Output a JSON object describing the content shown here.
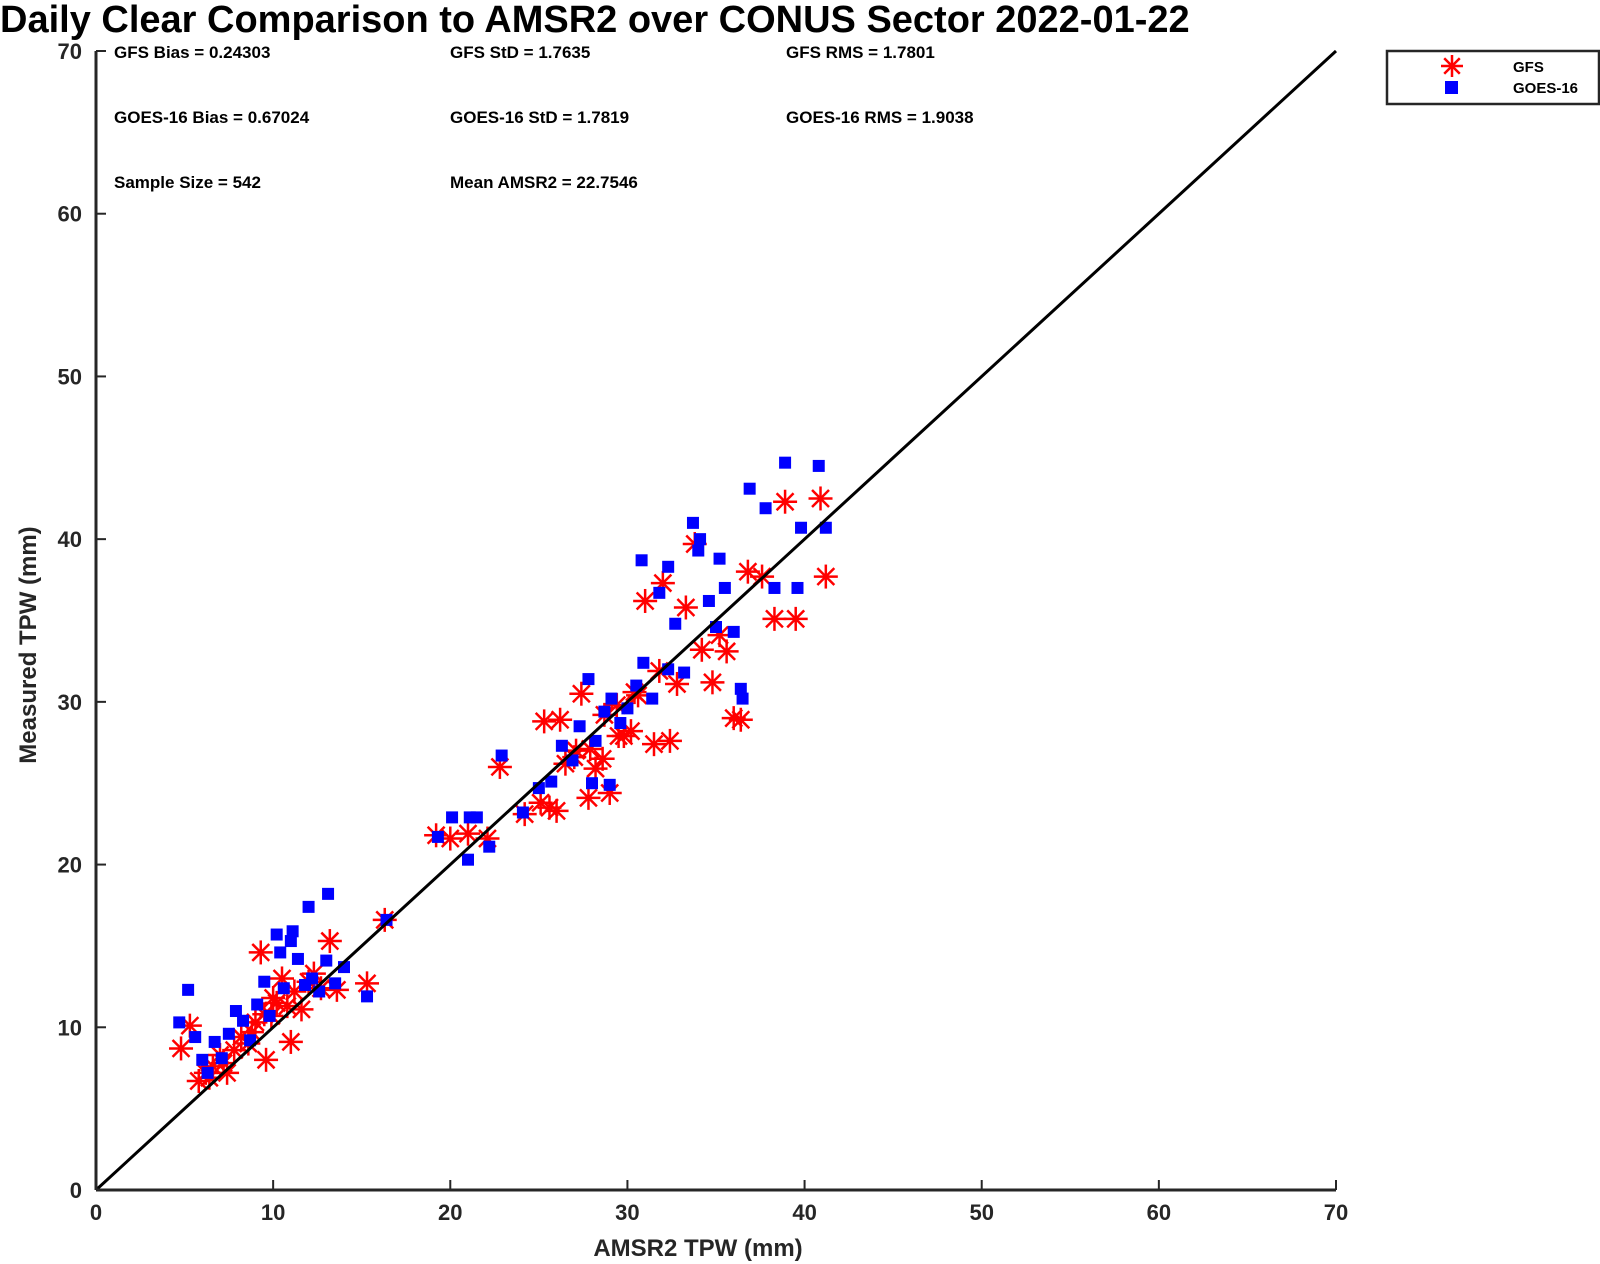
{
  "chart_data": {
    "type": "scatter",
    "title": "Daily Clear Comparison to AMSR2 over CONUS Sector 2022-01-22",
    "xlabel": "AMSR2 TPW (mm)",
    "ylabel": "Measured TPW (mm)",
    "xlim": [
      0,
      70
    ],
    "ylim": [
      0,
      70
    ],
    "xticks": [
      "0",
      "10",
      "20",
      "30",
      "40",
      "50",
      "60",
      "70"
    ],
    "yticks": [
      "0",
      "10",
      "20",
      "30",
      "40",
      "50",
      "60",
      "70"
    ],
    "grid": false,
    "legend_position": "outside-top-right",
    "reference_line": {
      "x": [
        0,
        70
      ],
      "y": [
        0,
        70
      ]
    },
    "statistics": [
      "GFS Bias = 0.24303",
      "GFS StD = 1.7635",
      "GFS RMS = 1.7801",
      "GOES-16 Bias = 0.67024",
      "GOES-16 StD = 1.7819",
      "GOES-16 RMS = 1.9038",
      "Sample Size = 542",
      "Mean AMSR2 = 22.7546"
    ],
    "series": [
      {
        "name": "GFS",
        "color": "#ff0000",
        "marker": "asterisk",
        "x": [
          4.8,
          5.3,
          5.8,
          6.2,
          6.6,
          7.0,
          7.4,
          7.8,
          8.2,
          8.6,
          9.0,
          9.3,
          9.6,
          9.9,
          10.2,
          10.5,
          10.8,
          11.2,
          11.6,
          12.0,
          12.3,
          12.7,
          13.2,
          13.6,
          15.3,
          16.3,
          8.8,
          9.5,
          10.0,
          11.0,
          6.4,
          7.2,
          19.2,
          20.0,
          21.0,
          22.1,
          22.8,
          24.2,
          25.1,
          25.6,
          26.0,
          26.5,
          27.0,
          27.4,
          27.8,
          28.2,
          28.6,
          29.0,
          29.4,
          29.8,
          30.2,
          30.6,
          31.0,
          31.5,
          32.0,
          32.4,
          32.8,
          33.3,
          33.8,
          34.2,
          34.8,
          35.2,
          35.6,
          36.0,
          36.4,
          36.8,
          37.6,
          38.3,
          38.9,
          39.5,
          40.9,
          41.2,
          26.2,
          27.9,
          28.7,
          29.5,
          30.4,
          31.8,
          25.3,
          27.1
        ],
        "y": [
          8.7,
          10.1,
          6.7,
          7.2,
          7.6,
          8.3,
          7.2,
          8.6,
          9.4,
          9.0,
          10.3,
          14.6,
          8.0,
          10.7,
          11.5,
          13.0,
          11.3,
          12.2,
          11.1,
          12.8,
          13.3,
          12.4,
          15.3,
          12.3,
          12.7,
          16.6,
          9.7,
          10.8,
          11.8,
          9.1,
          6.9,
          7.8,
          21.8,
          21.6,
          21.9,
          21.6,
          26.0,
          23.1,
          23.8,
          23.5,
          23.3,
          26.2,
          26.6,
          30.5,
          24.1,
          25.9,
          26.5,
          24.4,
          29.8,
          27.9,
          28.2,
          30.4,
          36.2,
          27.4,
          37.3,
          27.6,
          31.1,
          35.8,
          39.7,
          33.2,
          31.2,
          34.1,
          33.1,
          29.0,
          28.9,
          38.0,
          37.7,
          35.1,
          42.3,
          35.1,
          42.5,
          37.7,
          28.9,
          27.1,
          29.2,
          27.9,
          30.6,
          31.9,
          28.8,
          27.0
        ]
      },
      {
        "name": "GOES-16",
        "color": "#0000ff",
        "marker": "square",
        "x": [
          4.7,
          5.2,
          5.6,
          6.0,
          6.3,
          6.7,
          7.1,
          7.5,
          7.9,
          8.3,
          8.7,
          9.1,
          9.5,
          9.8,
          10.2,
          10.6,
          11.0,
          11.4,
          11.8,
          12.2,
          12.6,
          13.0,
          13.5,
          14.0,
          15.3,
          16.4,
          12.0,
          13.1,
          11.1,
          10.4,
          20.1,
          21.0,
          21.5,
          22.2,
          22.9,
          24.1,
          25.0,
          25.7,
          26.3,
          26.9,
          27.3,
          27.8,
          28.2,
          28.7,
          29.1,
          29.6,
          30.0,
          30.5,
          30.9,
          31.4,
          31.8,
          32.3,
          32.7,
          33.2,
          33.7,
          34.1,
          34.6,
          35.0,
          35.5,
          36.0,
          36.5,
          36.9,
          37.8,
          38.3,
          38.9,
          39.6,
          39.8,
          40.8,
          41.2,
          34.0,
          35.2,
          36.4,
          30.8,
          32.3,
          28.0,
          29.0,
          19.3,
          21.1
        ],
        "y": [
          10.3,
          12.3,
          9.4,
          8.0,
          7.2,
          9.1,
          8.1,
          9.6,
          11.0,
          10.4,
          9.2,
          11.4,
          12.8,
          10.7,
          15.7,
          12.4,
          15.3,
          14.2,
          12.6,
          13.0,
          12.2,
          14.1,
          12.7,
          13.7,
          11.9,
          16.6,
          17.4,
          18.2,
          15.9,
          14.6,
          22.9,
          20.3,
          22.9,
          21.1,
          26.7,
          23.2,
          24.7,
          25.1,
          27.3,
          26.4,
          28.5,
          31.4,
          27.6,
          29.4,
          30.2,
          28.7,
          29.6,
          31.0,
          32.4,
          30.2,
          36.7,
          32.0,
          34.8,
          31.8,
          41.0,
          40.0,
          36.2,
          34.6,
          37.0,
          34.3,
          30.2,
          43.1,
          41.9,
          37.0,
          44.7,
          37.0,
          40.7,
          44.5,
          40.7,
          39.3,
          38.8,
          30.8,
          38.7,
          38.3,
          25.0,
          24.9,
          21.7,
          22.9
        ]
      }
    ]
  }
}
